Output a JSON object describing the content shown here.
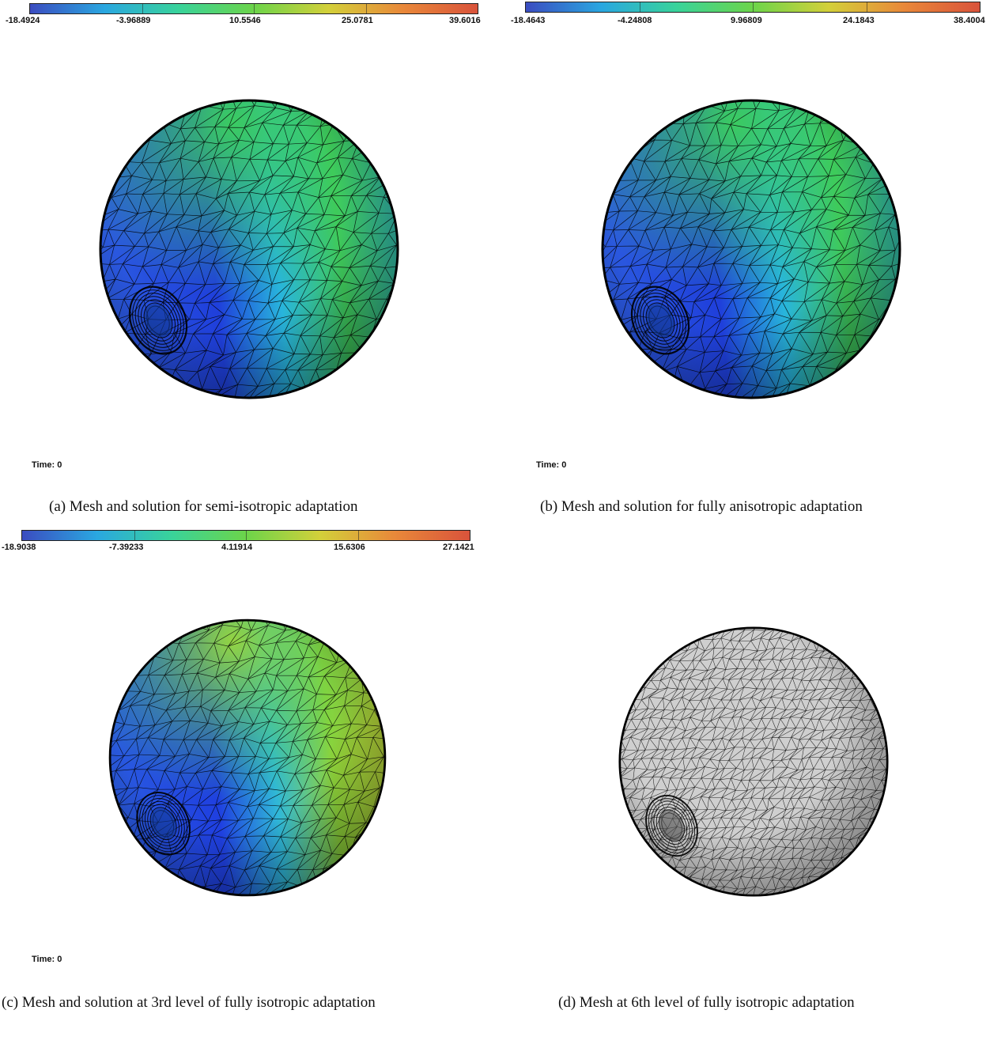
{
  "colors": {
    "scale": [
      "#3b4cc0",
      "#2aa7e0",
      "#39d39a",
      "#6cd44a",
      "#d3d03a",
      "#e9883a",
      "#d9533b"
    ],
    "mesh_line": "#000000",
    "gray_fill": "#cfcfcf"
  },
  "panels": [
    {
      "id": "a",
      "colorbar": {
        "labels": [
          "-18.4924",
          "-3.96889",
          "10.5546",
          "25.0781",
          "39.6016"
        ]
      },
      "time_label": "Time: 0",
      "caption": "(a) Mesh and solution for semi-isotropic adaptation",
      "sphere_style": "color-blue-green"
    },
    {
      "id": "b",
      "colorbar": {
        "labels": [
          "-18.4643",
          "-4.24808",
          "9.96809",
          "24.1843",
          "38.4004"
        ]
      },
      "time_label": "Time: 0",
      "caption": "(b) Mesh and solution for fully anisotropic adaptation",
      "sphere_style": "color-blue-green"
    },
    {
      "id": "c",
      "colorbar": {
        "labels": [
          "-18.9038",
          "-7.39233",
          "4.11914",
          "15.6306",
          "27.1421"
        ]
      },
      "time_label": "Time: 0",
      "caption": "(c) Mesh and solution at 3rd level of fully isotropic adaptation",
      "sphere_style": "color-blue-yellow"
    },
    {
      "id": "d",
      "caption": "(d) Mesh at 6th level of fully isotropic adaptation",
      "sphere_style": "gray-mesh"
    }
  ]
}
